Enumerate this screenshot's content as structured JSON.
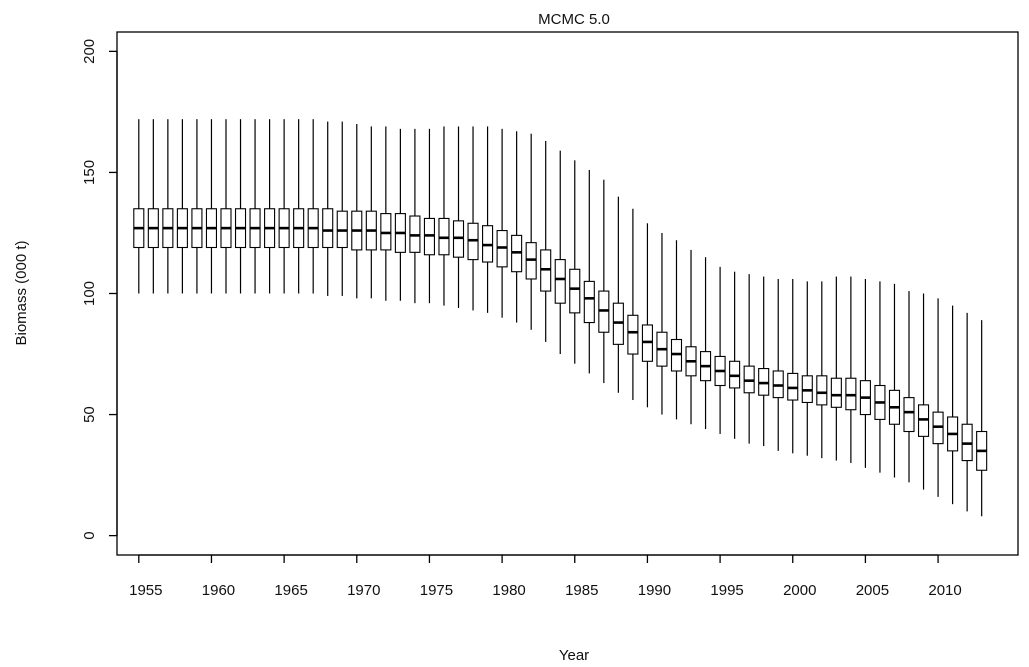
{
  "chart_data": {
    "type": "boxplot",
    "title": "MCMC 5.0",
    "xlabel": "Year",
    "ylabel": "Biomass (000 t)",
    "xlim": [
      1953.5,
      2015.5
    ],
    "ylim": [
      -8,
      208
    ],
    "x_ticks": [
      1955,
      1960,
      1965,
      1970,
      1975,
      1980,
      1985,
      1990,
      1995,
      2000,
      2005,
      2010
    ],
    "y_ticks": [
      0,
      50,
      100,
      150,
      200
    ],
    "grid": false,
    "colors": {
      "box_fill": "#ffffff",
      "box_stroke": "#000000",
      "axis": "#000000"
    },
    "years": [
      1955,
      1956,
      1957,
      1958,
      1959,
      1960,
      1961,
      1962,
      1963,
      1964,
      1965,
      1966,
      1967,
      1968,
      1969,
      1970,
      1971,
      1972,
      1973,
      1974,
      1975,
      1976,
      1977,
      1978,
      1979,
      1980,
      1981,
      1982,
      1983,
      1984,
      1985,
      1986,
      1987,
      1988,
      1989,
      1990,
      1991,
      1992,
      1993,
      1994,
      1995,
      1996,
      1997,
      1998,
      1999,
      2000,
      2001,
      2002,
      2003,
      2004,
      2005,
      2006,
      2007,
      2008,
      2009,
      2010,
      2011,
      2012,
      2013
    ],
    "whisker_low": [
      100,
      100,
      100,
      100,
      100,
      100,
      100,
      100,
      100,
      100,
      100,
      100,
      100,
      99,
      99,
      98,
      98,
      97,
      97,
      96,
      96,
      95,
      94,
      93,
      92,
      90,
      88,
      85,
      80,
      75,
      71,
      67,
      63,
      59,
      56,
      53,
      50,
      48,
      46,
      44,
      42,
      40,
      38,
      37,
      35,
      34,
      33,
      32,
      31,
      30,
      28,
      26,
      24,
      22,
      19,
      16,
      13,
      10,
      8
    ],
    "q1": [
      119,
      119,
      119,
      119,
      119,
      119,
      119,
      119,
      119,
      119,
      119,
      119,
      119,
      119,
      119,
      118,
      118,
      118,
      117,
      117,
      116,
      116,
      115,
      114,
      113,
      111,
      109,
      106,
      101,
      96,
      92,
      88,
      84,
      79,
      75,
      72,
      70,
      68,
      66,
      64,
      62,
      61,
      59,
      58,
      57,
      56,
      55,
      54,
      53,
      52,
      50,
      48,
      46,
      43,
      41,
      38,
      35,
      31,
      27
    ],
    "median": [
      127,
      127,
      127,
      127,
      127,
      127,
      127,
      127,
      127,
      127,
      127,
      127,
      127,
      126,
      126,
      126,
      126,
      125,
      125,
      124,
      124,
      123,
      123,
      122,
      120,
      119,
      117,
      114,
      110,
      106,
      102,
      98,
      93,
      88,
      84,
      80,
      77,
      75,
      72,
      70,
      68,
      66,
      64,
      63,
      62,
      61,
      60,
      59,
      58,
      58,
      57,
      55,
      53,
      51,
      48,
      45,
      42,
      38,
      35
    ],
    "q3": [
      135,
      135,
      135,
      135,
      135,
      135,
      135,
      135,
      135,
      135,
      135,
      135,
      135,
      135,
      134,
      134,
      134,
      133,
      133,
      132,
      131,
      131,
      130,
      129,
      128,
      126,
      124,
      121,
      118,
      114,
      110,
      105,
      101,
      96,
      91,
      87,
      84,
      81,
      78,
      76,
      74,
      72,
      70,
      69,
      68,
      67,
      66,
      66,
      65,
      65,
      64,
      62,
      60,
      57,
      54,
      51,
      49,
      46,
      43
    ],
    "whisker_high": [
      172,
      172,
      172,
      172,
      172,
      172,
      172,
      172,
      172,
      172,
      172,
      172,
      172,
      171,
      171,
      170,
      169,
      169,
      168,
      168,
      168,
      169,
      169,
      169,
      169,
      168,
      167,
      166,
      163,
      159,
      155,
      151,
      147,
      140,
      135,
      129,
      125,
      122,
      118,
      115,
      111,
      109,
      108,
      107,
      106,
      106,
      105,
      105,
      107,
      107,
      106,
      105,
      104,
      101,
      100,
      98,
      95,
      92,
      89
    ]
  }
}
